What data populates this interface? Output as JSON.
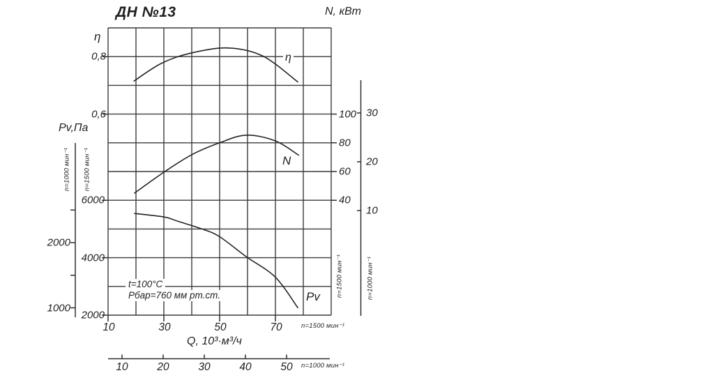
{
  "title": "ДН №13",
  "colors": {
    "ink": "#1f1f1f",
    "grid": "#3a3a3a",
    "curve": "#242424",
    "background": "#ffffff"
  },
  "chart_data": {
    "type": "line",
    "title": "ДН №13",
    "xlabel": "Q, 10³·м³/ч",
    "grid": true,
    "x_axis_main": {
      "note": "n=1500 мин⁻¹",
      "ticks": [
        10,
        30,
        50,
        70
      ],
      "range": [
        10,
        90
      ]
    },
    "x_axis_secondary": {
      "note": "n=1000 мин⁻¹",
      "ticks": [
        10,
        20,
        30,
        40,
        50
      ]
    },
    "eta_axis": {
      "label": "η",
      "ticks": [
        {
          "v": 0.8,
          "label": "0,8"
        },
        {
          "v": 0.6,
          "label": "0,6"
        }
      ]
    },
    "pv_axis": {
      "label": "Pv,Па",
      "inner_scale_note": "n=1500 мин⁻¹",
      "outer_scale_note": "n=1000 мин⁻¹",
      "inner_ticks": [
        6000,
        4000,
        2000
      ],
      "outer_axis_ticks": [
        2500,
        2000,
        1500,
        1000
      ],
      "outer_labeled_ticks": [
        2000,
        1000
      ]
    },
    "n_axis": {
      "label": "N, кВт",
      "inner_scale_note": "n=1500 мин⁻¹",
      "outer_scale_note": "n=1000 мин⁻¹",
      "inner_ticks": [
        100,
        80,
        60,
        40
      ],
      "outer_ticks": [
        30,
        20,
        10
      ]
    },
    "series": [
      {
        "name": "η",
        "axis": "eta",
        "points": [
          [
            19.3,
            0.715
          ],
          [
            29,
            0.776
          ],
          [
            39.5,
            0.812
          ],
          [
            53,
            0.83
          ],
          [
            65.5,
            0.802
          ],
          [
            78,
            0.712
          ]
        ]
      },
      {
        "name": "N",
        "axis": "n",
        "points": [
          [
            19.5,
            45
          ],
          [
            30,
            59.5
          ],
          [
            40,
            71.7
          ],
          [
            50,
            80
          ],
          [
            59.5,
            85.3
          ],
          [
            70,
            81.3
          ],
          [
            78.3,
            71.4
          ]
        ]
      },
      {
        "name": "Pv",
        "axis": "pv",
        "points": [
          [
            19.5,
            5540
          ],
          [
            30,
            5420
          ],
          [
            35,
            5270
          ],
          [
            43.7,
            5000
          ],
          [
            50,
            4730
          ],
          [
            59.5,
            4040
          ],
          [
            70,
            3320
          ],
          [
            78,
            2260
          ]
        ]
      }
    ],
    "annotations": [
      "t=100°C",
      "Рбар=760 мм рт.ст."
    ]
  }
}
